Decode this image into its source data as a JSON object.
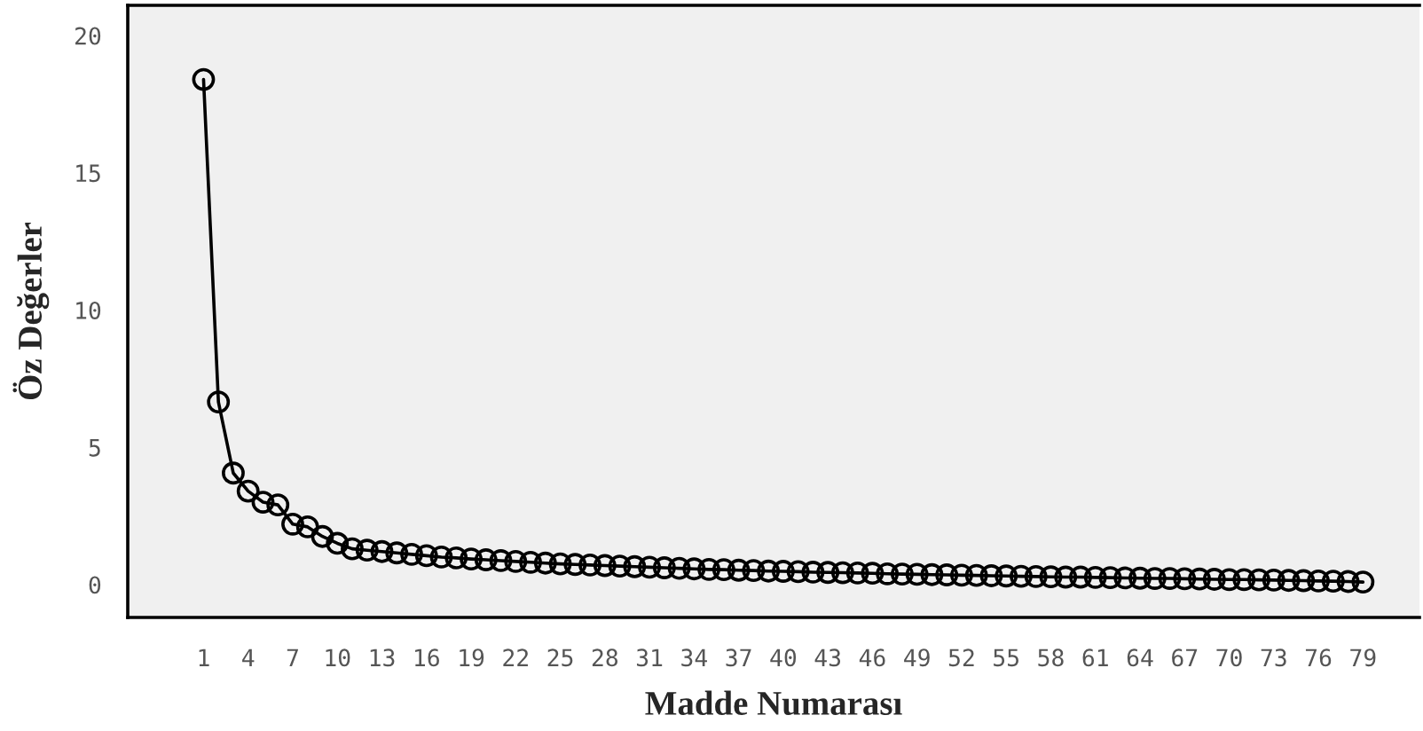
{
  "chart_data": {
    "type": "line",
    "xlabel": "Madde Numarası",
    "ylabel": "Öz Değerler",
    "categories": [
      "1",
      null,
      null,
      "4",
      null,
      null,
      "7",
      null,
      null,
      "10",
      null,
      null,
      "13",
      null,
      null,
      "16",
      null,
      null,
      "19",
      null,
      null,
      "22",
      null,
      null,
      "25",
      null,
      null,
      "28",
      null,
      null,
      "31",
      null,
      null,
      "34",
      null,
      null,
      "37",
      null,
      null,
      "40",
      null,
      null,
      "43",
      null,
      null,
      "46",
      null,
      null,
      "49",
      null,
      null,
      "52",
      null,
      null,
      "55",
      null,
      null,
      "58",
      null,
      null,
      "61",
      null,
      null,
      "64",
      null,
      null,
      "67",
      null,
      null,
      "70",
      null,
      null,
      "73",
      null,
      null,
      "76",
      null,
      null,
      "79"
    ],
    "series": [
      {
        "color": "#000000",
        "values": [
          18.4,
          6.65,
          4.06,
          3.4,
          3.0,
          2.9,
          2.2,
          2.1,
          1.75,
          1.5,
          1.3,
          1.25,
          1.2,
          1.15,
          1.1,
          1.05,
          1.0,
          0.97,
          0.93,
          0.9,
          0.87,
          0.84,
          0.81,
          0.78,
          0.75,
          0.73,
          0.71,
          0.69,
          0.67,
          0.65,
          0.63,
          0.61,
          0.59,
          0.57,
          0.55,
          0.54,
          0.52,
          0.51,
          0.49,
          0.48,
          0.47,
          0.45,
          0.44,
          0.43,
          0.42,
          0.41,
          0.39,
          0.38,
          0.37,
          0.36,
          0.35,
          0.34,
          0.33,
          0.32,
          0.31,
          0.3,
          0.29,
          0.28,
          0.27,
          0.27,
          0.26,
          0.25,
          0.24,
          0.23,
          0.22,
          0.22,
          0.21,
          0.2,
          0.19,
          0.18,
          0.18,
          0.17,
          0.16,
          0.15,
          0.14,
          0.13,
          0.12,
          0.11,
          0.09
        ]
      }
    ],
    "ylim": [
      -1.2,
      21.1
    ],
    "yticks": [
      0,
      5,
      10,
      15,
      20
    ],
    "marker": "circle",
    "line_style": "solid",
    "grid": false,
    "legend": false
  }
}
